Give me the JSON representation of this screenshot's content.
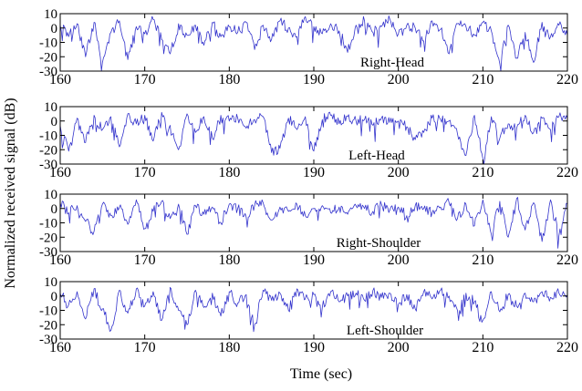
{
  "chart_data": {
    "type": "line",
    "xlabel": "Time (sec)",
    "ylabel": "Normalized received signal (dB)",
    "xlim": [
      160,
      220
    ],
    "ylim": [
      -30,
      10
    ],
    "x_ticks": [
      "160",
      "170",
      "180",
      "190",
      "200",
      "210",
      "220"
    ],
    "y_ticks": [
      "10",
      "0",
      "-10",
      "-20",
      "-30"
    ],
    "line_color": "#3333cc",
    "grid": false,
    "panels": [
      {
        "label": "Right-Head",
        "x": [
          160,
          161,
          162,
          163,
          164,
          165,
          166,
          167,
          168,
          169,
          170,
          171,
          172,
          173,
          174,
          175,
          176,
          177,
          178,
          179,
          180,
          181,
          182,
          183,
          184,
          185,
          186,
          187,
          188,
          189,
          190,
          191,
          192,
          193,
          194,
          195,
          196,
          197,
          198,
          199,
          200,
          201,
          202,
          203,
          204,
          205,
          206,
          207,
          208,
          209,
          210,
          211,
          212,
          213,
          214,
          215,
          216,
          217,
          218,
          219,
          220
        ],
        "y": [
          2,
          -6,
          3,
          -20,
          4,
          -24,
          -3,
          5,
          -22,
          1,
          -4,
          6,
          -8,
          -18,
          3,
          -5,
          2,
          -12,
          4,
          -6,
          1,
          -3,
          4,
          -15,
          2,
          -8,
          5,
          0,
          -6,
          8,
          1,
          -4,
          3,
          -2,
          -17,
          2,
          5,
          -3,
          1,
          6,
          -4,
          2,
          0,
          -9,
          5,
          -1,
          -18,
          3,
          1,
          -5,
          4,
          -2,
          -25,
          2,
          -21,
          -3,
          -24,
          4,
          -6,
          2,
          -5
        ]
      },
      {
        "label": "Left-Head",
        "x": [
          160,
          161,
          162,
          163,
          164,
          165,
          166,
          167,
          168,
          169,
          170,
          171,
          172,
          173,
          174,
          175,
          176,
          177,
          178,
          179,
          180,
          181,
          182,
          183,
          184,
          185,
          186,
          187,
          188,
          189,
          190,
          191,
          192,
          193,
          194,
          195,
          196,
          197,
          198,
          199,
          200,
          201,
          202,
          203,
          204,
          205,
          206,
          207,
          208,
          209,
          210,
          211,
          212,
          213,
          214,
          215,
          216,
          217,
          218,
          219,
          220
        ],
        "y": [
          -3,
          -21,
          2,
          -15,
          4,
          -6,
          3,
          -18,
          5,
          -2,
          4,
          -14,
          6,
          -3,
          -20,
          5,
          -8,
          3,
          -12,
          4,
          0,
          2,
          -5,
          1,
          3,
          -22,
          -19,
          2,
          -6,
          3,
          -21,
          1,
          4,
          -2,
          3,
          0,
          1,
          -3,
          2,
          -1,
          0,
          -4,
          -13,
          -8,
          2,
          1,
          0,
          -9,
          -24,
          4,
          -26,
          3,
          -12,
          -2,
          -5,
          4,
          -8,
          2,
          -6,
          3,
          2
        ]
      },
      {
        "label": "Right-Shoulder",
        "x": [
          160,
          161,
          162,
          163,
          164,
          165,
          166,
          167,
          168,
          169,
          170,
          171,
          172,
          173,
          174,
          175,
          176,
          177,
          178,
          179,
          180,
          181,
          182,
          183,
          184,
          185,
          186,
          187,
          188,
          189,
          190,
          191,
          192,
          193,
          194,
          195,
          196,
          197,
          198,
          199,
          200,
          201,
          202,
          203,
          204,
          205,
          206,
          207,
          208,
          209,
          210,
          211,
          212,
          213,
          214,
          215,
          216,
          217,
          218,
          219,
          220
        ],
        "y": [
          4,
          -3,
          2,
          -9,
          -16,
          3,
          -5,
          1,
          -11,
          6,
          -14,
          -2,
          5,
          -7,
          3,
          -18,
          2,
          -4,
          1,
          -10,
          3,
          0,
          -6,
          2,
          4,
          -8,
          1,
          -2,
          3,
          -5,
          0,
          2,
          -3,
          1,
          -4,
          2,
          0,
          -2,
          3,
          -1,
          1,
          -5,
          2,
          0,
          -3,
          1,
          4,
          -7,
          3,
          -12,
          6,
          -18,
          5,
          -20,
          7,
          -15,
          4,
          -23,
          6,
          -19,
          3
        ]
      },
      {
        "label": "Left-Shoulder",
        "x": [
          160,
          161,
          162,
          163,
          164,
          165,
          166,
          167,
          168,
          169,
          170,
          171,
          172,
          173,
          174,
          175,
          176,
          177,
          178,
          179,
          180,
          181,
          182,
          183,
          184,
          185,
          186,
          187,
          188,
          189,
          190,
          191,
          192,
          193,
          194,
          195,
          196,
          197,
          198,
          199,
          200,
          201,
          202,
          203,
          204,
          205,
          206,
          207,
          208,
          209,
          210,
          211,
          212,
          213,
          214,
          215,
          216,
          217,
          218,
          219,
          220
        ],
        "y": [
          2,
          -6,
          3,
          -16,
          5,
          -9,
          -24,
          4,
          -12,
          5,
          -7,
          3,
          -17,
          6,
          -10,
          -20,
          4,
          -8,
          2,
          -14,
          3,
          -5,
          1,
          -20,
          4,
          -3,
          2,
          -10,
          5,
          -2,
          1,
          -8,
          3,
          -4,
          0,
          2,
          -3,
          4,
          -1,
          2,
          -6,
          1,
          -9,
          3,
          -2,
          4,
          0,
          -10,
          2,
          -4,
          -17,
          3,
          -11,
          1,
          -7,
          2,
          -4,
          3,
          -1,
          2,
          1
        ]
      }
    ]
  }
}
